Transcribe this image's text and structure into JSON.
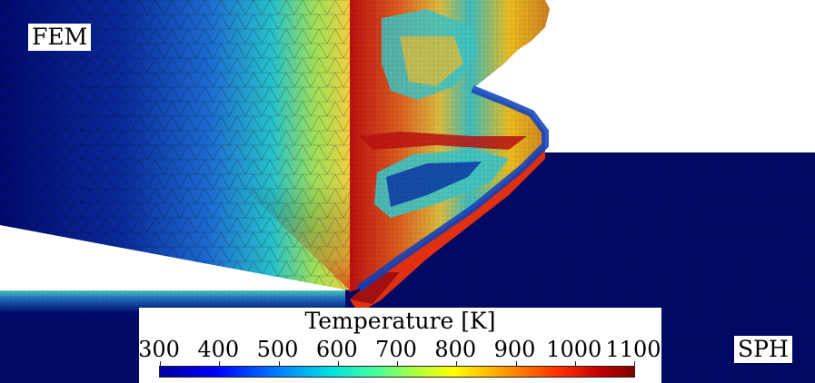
{
  "labels": {
    "fem": "FEM",
    "sph": "SPH"
  },
  "legend": {
    "title": "Temperature [K]",
    "ticks": [
      "300",
      "400",
      "500",
      "600",
      "700",
      "800",
      "900",
      "1000",
      "1100"
    ],
    "range": [
      300,
      1100
    ]
  },
  "colors": {
    "cold": "#000a66",
    "hot": "#8b0000",
    "background": "#ffffff"
  }
}
